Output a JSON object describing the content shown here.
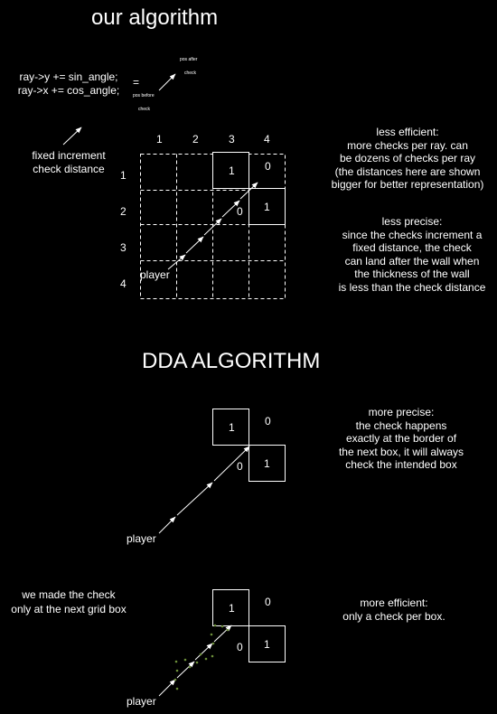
{
  "section1": {
    "title": "our algorithm",
    "code_lines": [
      "ray->y += sin_angle;",
      "ray->x += cos_angle;"
    ],
    "equals": "=",
    "pos_after": [
      "pos after",
      "check"
    ],
    "pos_before": [
      "pos before",
      "check"
    ],
    "fixed_note": [
      "fixed increment",
      "check distance"
    ],
    "col_labels": [
      "1",
      "2",
      "3",
      "4"
    ],
    "row_labels": [
      "1",
      "2",
      "3",
      "4"
    ],
    "cell_values": {
      "r1c3": "1",
      "r1c4": "0",
      "r2c3": "0",
      "r2c4": "1"
    },
    "player": "player",
    "note_efficiency": [
      "less efficient:",
      "more checks per ray. can",
      "be dozens of checks per ray",
      "(the distances here are shown",
      "bigger for better representation)"
    ],
    "note_precision": [
      "less precise:",
      "since the checks increment a",
      "fixed distance, the check",
      "can land after the wall when",
      "the thickness of the wall",
      "is less than the check distance"
    ]
  },
  "section2": {
    "title": "DDA ALGORITHM",
    "cell_values": {
      "a": "1",
      "b": "0",
      "c": "0",
      "d": "1"
    },
    "player": "player",
    "note": [
      "more precise:",
      "the check happens",
      "exactly at the border of",
      "the next box, it will always",
      "check the intended box"
    ]
  },
  "section3": {
    "left_note": [
      "we made the check",
      "only at the next grid box"
    ],
    "cell_values": {
      "a": "1",
      "b": "0",
      "c": "0",
      "d": "1"
    },
    "player": "player",
    "note": [
      "more efficient:",
      "only a check per box."
    ]
  }
}
